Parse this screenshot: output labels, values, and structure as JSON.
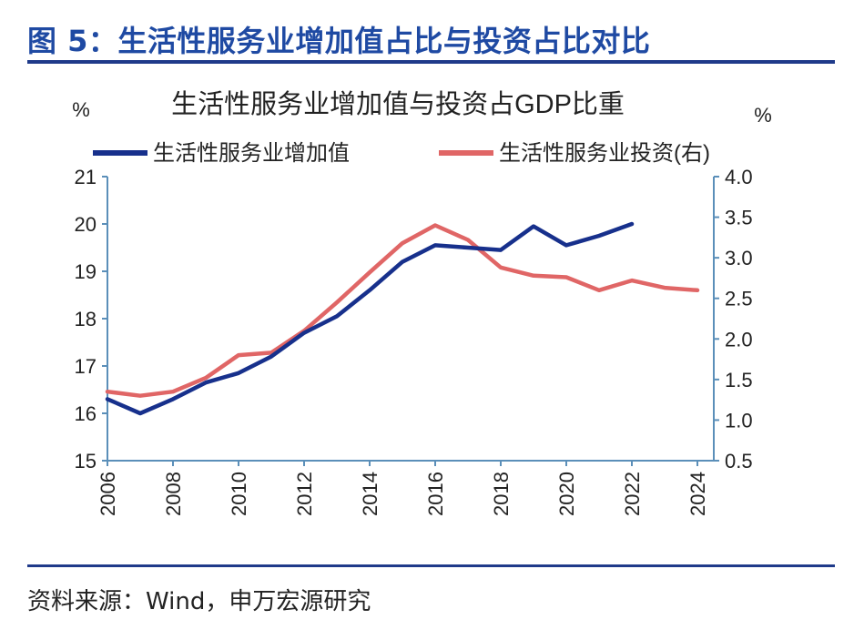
{
  "figure": {
    "title": "图 5：生活性服务业增加值占比与投资占比对比",
    "source": "资料来源：Wind，申万宏源研究"
  },
  "colors": {
    "brand": "#1f4aa3",
    "series_primary": "#17308c",
    "series_secondary": "#e06666",
    "axis": "#5b8fb9"
  },
  "chart_data": {
    "type": "line",
    "title": "生活性服务业增加值与投资占GDP比重",
    "y_unit_left": "%",
    "y_unit_right": "%",
    "legend_placement": "top",
    "grid": false,
    "x_ticks": [
      "2006",
      "2008",
      "2010",
      "2012",
      "2014",
      "2016",
      "2018",
      "2020",
      "2022",
      "2024"
    ],
    "xlim": [
      2006,
      2024.5
    ],
    "ylim_left": [
      15,
      21
    ],
    "yticks_left": [
      "15",
      "16",
      "17",
      "18",
      "19",
      "20",
      "21"
    ],
    "ylim_right": [
      0.5,
      4.0
    ],
    "yticks_right": [
      "0.5",
      "1.0",
      "1.5",
      "2.0",
      "2.5",
      "3.0",
      "3.5",
      "4.0"
    ],
    "series": [
      {
        "name": "生活性服务业增加值",
        "axis": "left",
        "color": "#17308c",
        "x": [
          2006,
          2007,
          2008,
          2009,
          2010,
          2011,
          2012,
          2013,
          2014,
          2015,
          2016,
          2017,
          2018,
          2019,
          2020,
          2021,
          2022
        ],
        "y": [
          16.3,
          16.0,
          16.3,
          16.65,
          16.85,
          17.2,
          17.7,
          18.05,
          18.6,
          19.2,
          19.55,
          19.5,
          19.45,
          19.95,
          19.55,
          19.75,
          20.0
        ]
      },
      {
        "name": "生活性服务业投资(右)",
        "axis": "right",
        "color": "#e06666",
        "x": [
          2006,
          2007,
          2008,
          2009,
          2010,
          2011,
          2012,
          2013,
          2014,
          2015,
          2016,
          2017,
          2018,
          2019,
          2020,
          2021,
          2022,
          2023,
          2024
        ],
        "y": [
          1.35,
          1.3,
          1.35,
          1.52,
          1.8,
          1.83,
          2.1,
          2.45,
          2.82,
          3.18,
          3.4,
          3.22,
          2.88,
          2.78,
          2.76,
          2.6,
          2.72,
          2.63,
          2.6
        ]
      }
    ]
  }
}
